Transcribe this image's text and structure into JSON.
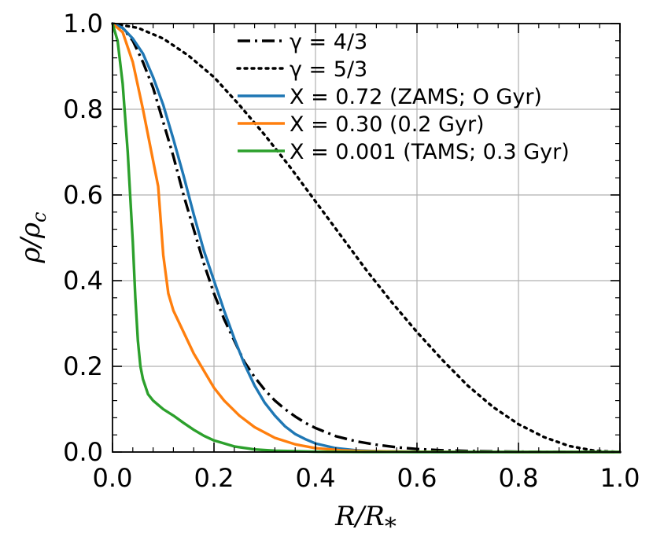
{
  "chart_data": {
    "type": "line",
    "title": "",
    "xlabel": "R/R *",
    "ylabel": "ρ/ρc",
    "xlim": [
      0.0,
      1.0
    ],
    "ylim": [
      0.0,
      1.0
    ],
    "grid": true,
    "legend_position": "top-right",
    "x_ticks": [
      "0.0",
      "0.2",
      "0.4",
      "0.6",
      "0.8",
      "1.0"
    ],
    "y_ticks": [
      "0.0",
      "0.2",
      "0.4",
      "0.6",
      "0.8",
      "1.0"
    ],
    "series": [
      {
        "name": "γ = 4/3",
        "color": "#000000",
        "style": "dashdot",
        "x": [
          0.0,
          0.02,
          0.04,
          0.06,
          0.08,
          0.1,
          0.12,
          0.14,
          0.16,
          0.18,
          0.2,
          0.22,
          0.24,
          0.26,
          0.28,
          0.3,
          0.32,
          0.34,
          0.36,
          0.38,
          0.4,
          0.44,
          0.48,
          0.52,
          0.56,
          0.6,
          0.65,
          0.7,
          0.75,
          0.8,
          0.85,
          0.9,
          0.95,
          1.0
        ],
        "y": [
          1.0,
          0.99,
          0.96,
          0.91,
          0.85,
          0.77,
          0.69,
          0.6,
          0.52,
          0.44,
          0.37,
          0.31,
          0.26,
          0.21,
          0.175,
          0.145,
          0.12,
          0.1,
          0.083,
          0.068,
          0.056,
          0.037,
          0.025,
          0.017,
          0.011,
          0.007,
          0.004,
          0.0025,
          0.0015,
          0.0008,
          0.0004,
          0.0002,
          0.0001,
          0.0
        ]
      },
      {
        "name": "γ = 5/3",
        "color": "#000000",
        "style": "dotted",
        "x": [
          0.0,
          0.05,
          0.1,
          0.15,
          0.2,
          0.25,
          0.3,
          0.35,
          0.4,
          0.45,
          0.5,
          0.55,
          0.6,
          0.65,
          0.7,
          0.75,
          0.8,
          0.85,
          0.9,
          0.95,
          1.0
        ],
        "y": [
          1.0,
          0.99,
          0.965,
          0.925,
          0.875,
          0.81,
          0.74,
          0.665,
          0.585,
          0.505,
          0.425,
          0.35,
          0.28,
          0.215,
          0.155,
          0.105,
          0.065,
          0.035,
          0.014,
          0.003,
          0.0
        ]
      },
      {
        "name": "X = 0.72 (ZAMS; O Gyr)",
        "color": "#1f77b4",
        "style": "solid",
        "x": [
          0.0,
          0.02,
          0.04,
          0.06,
          0.08,
          0.1,
          0.12,
          0.14,
          0.16,
          0.18,
          0.2,
          0.22,
          0.24,
          0.26,
          0.28,
          0.3,
          0.32,
          0.34,
          0.36,
          0.38,
          0.4,
          0.44,
          0.48,
          0.52,
          0.56,
          0.6,
          0.65,
          0.7,
          0.8,
          0.9,
          1.0
        ],
        "y": [
          1.0,
          0.99,
          0.965,
          0.93,
          0.875,
          0.81,
          0.73,
          0.645,
          0.555,
          0.47,
          0.4,
          0.33,
          0.265,
          0.205,
          0.155,
          0.115,
          0.085,
          0.06,
          0.042,
          0.03,
          0.02,
          0.009,
          0.004,
          0.002,
          0.001,
          0.0005,
          0.0002,
          0.0001,
          0.0,
          0.0,
          0.0
        ]
      },
      {
        "name": "X = 0.30 (0.2 Gyr)",
        "color": "#ff7f0e",
        "style": "solid",
        "x": [
          0.0,
          0.02,
          0.04,
          0.06,
          0.08,
          0.09,
          0.1,
          0.11,
          0.12,
          0.14,
          0.16,
          0.18,
          0.2,
          0.22,
          0.25,
          0.28,
          0.32,
          0.36,
          0.4,
          0.45,
          0.5,
          0.6,
          0.7,
          0.8,
          0.9,
          1.0
        ],
        "y": [
          1.0,
          0.98,
          0.91,
          0.8,
          0.68,
          0.62,
          0.46,
          0.37,
          0.33,
          0.28,
          0.23,
          0.19,
          0.15,
          0.12,
          0.085,
          0.058,
          0.033,
          0.018,
          0.009,
          0.004,
          0.002,
          0.0005,
          0.0001,
          0.0,
          0.0,
          0.0
        ]
      },
      {
        "name": "X = 0.001 (TAMS; 0.3 Gyr)",
        "color": "#2ca02c",
        "style": "solid",
        "x": [
          0.0,
          0.01,
          0.02,
          0.03,
          0.04,
          0.045,
          0.05,
          0.055,
          0.06,
          0.07,
          0.08,
          0.09,
          0.1,
          0.12,
          0.14,
          0.16,
          0.18,
          0.2,
          0.24,
          0.28,
          0.32,
          0.4,
          0.5,
          0.6,
          0.8,
          1.0
        ],
        "y": [
          1.0,
          0.96,
          0.86,
          0.7,
          0.49,
          0.36,
          0.26,
          0.2,
          0.17,
          0.135,
          0.12,
          0.11,
          0.1,
          0.085,
          0.068,
          0.052,
          0.038,
          0.027,
          0.013,
          0.006,
          0.003,
          0.0008,
          0.0002,
          0.0,
          0.0,
          0.0
        ]
      }
    ]
  }
}
